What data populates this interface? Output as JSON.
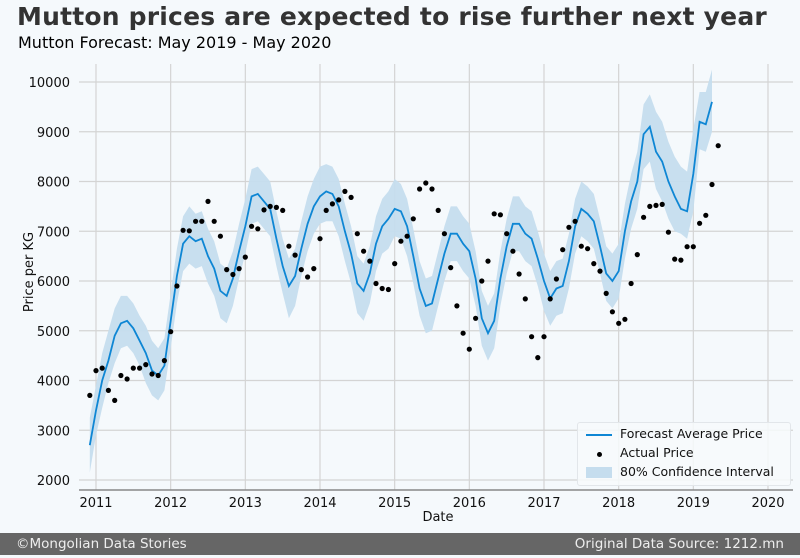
{
  "title": "Mutton prices are expected to rise further next year",
  "subtitle": "Mutton Forecast: May 2019 - May 2020",
  "footer": {
    "left": "©Mongolian Data Stories",
    "right": "Original Data Source: 1212.mn"
  },
  "colors": {
    "forecast_line": "#0e86d4",
    "confidence_fill": "#c5ddee",
    "actual_points": "#000000",
    "footer_bg": "#666666"
  },
  "chart_data": {
    "type": "line",
    "title": "Mutton prices are expected to rise further next year",
    "subtitle": "Mutton Forecast: May 2019 - May 2020",
    "xlabel": "Date",
    "ylabel": "Price per KG",
    "ylim": [
      1800,
      10300
    ],
    "xlim": [
      2010.9,
      2020.35
    ],
    "yticks": [
      2000,
      3000,
      4000,
      5000,
      6000,
      7000,
      8000,
      9000,
      10000
    ],
    "xticks": [
      2011,
      2012,
      2013,
      2014,
      2015,
      2016,
      2017,
      2018,
      2019,
      2020
    ],
    "xtick_labels": [
      "2011",
      "2012",
      "2013",
      "2014",
      "2015",
      "2016",
      "2017",
      "2018",
      "2019",
      "2020"
    ],
    "grid": true,
    "legend_position": "bottom-right",
    "legend": [
      "Forecast Average Price",
      "Actual Price",
      "80% Confidence Interval"
    ],
    "x_start": "2010-12",
    "x_step": "month",
    "series": [
      {
        "name": "Forecast Average Price",
        "values": [
          2700,
          3400,
          4000,
          4400,
          4900,
          5150,
          5200,
          5050,
          4800,
          4550,
          4200,
          4100,
          4300,
          5200,
          6100,
          6750,
          6900,
          6800,
          6850,
          6500,
          6250,
          5800,
          5700,
          6050,
          6600,
          7100,
          7700,
          7750,
          7600,
          7450,
          6850,
          6300,
          5900,
          6100,
          6650,
          7150,
          7500,
          7700,
          7800,
          7750,
          7500,
          7000,
          6550,
          5950,
          5800,
          6150,
          6750,
          7100,
          7250,
          7450,
          7400,
          7100,
          6500,
          5850,
          5500,
          5550,
          6050,
          6550,
          6950,
          6950,
          6750,
          6600,
          6050,
          5250,
          4950,
          5200,
          6050,
          6700,
          7150,
          7150,
          6950,
          6850,
          6450,
          6000,
          5650,
          5850,
          5900,
          6400,
          7100,
          7450,
          7350,
          7200,
          6700,
          6150,
          6000,
          6200,
          7000,
          7600,
          8000,
          8950,
          9100,
          8600,
          8400,
          8000,
          7700,
          7450,
          7400,
          8150,
          9200,
          9150,
          9600
        ]
      },
      {
        "name": "80% Confidence Interval (lower)",
        "values": [
          2150,
          2900,
          3450,
          3950,
          4350,
          4650,
          4700,
          4550,
          4300,
          3950,
          3700,
          3600,
          3800,
          4650,
          5550,
          6200,
          6350,
          6250,
          6300,
          5950,
          5700,
          5250,
          5150,
          5500,
          6050,
          6550,
          7150,
          7200,
          7050,
          6900,
          6300,
          5750,
          5250,
          5500,
          6100,
          6600,
          6950,
          7150,
          7200,
          7200,
          6900,
          6400,
          5950,
          5350,
          5200,
          5550,
          6200,
          6550,
          6650,
          6900,
          6850,
          6500,
          5950,
          5300,
          4950,
          5000,
          5500,
          6000,
          6400,
          6400,
          6200,
          6050,
          5500,
          4700,
          4400,
          4650,
          5500,
          6150,
          6600,
          6600,
          6400,
          6300,
          5900,
          5400,
          5100,
          5300,
          5350,
          5850,
          6550,
          6900,
          6800,
          6650,
          6150,
          5600,
          5450,
          5650,
          6450,
          7050,
          7450,
          8250,
          8400,
          7850,
          7600,
          7250,
          7000,
          6950,
          6850,
          7400,
          8650,
          8600,
          9000
        ]
      },
      {
        "name": "80% Confidence Interval (upper)",
        "values": [
          3250,
          3900,
          4550,
          5000,
          5450,
          5700,
          5700,
          5550,
          5300,
          5100,
          4800,
          4650,
          4850,
          5750,
          6650,
          7300,
          7500,
          7350,
          7400,
          7050,
          6800,
          6350,
          6250,
          6600,
          7150,
          7650,
          8250,
          8300,
          8150,
          8000,
          7400,
          6850,
          6450,
          6650,
          7200,
          7700,
          8050,
          8300,
          8350,
          8300,
          8050,
          7550,
          7100,
          6500,
          6350,
          6700,
          7300,
          7650,
          7800,
          8050,
          7950,
          7650,
          7050,
          6400,
          6050,
          6100,
          6600,
          7100,
          7500,
          7500,
          7300,
          7150,
          6600,
          5800,
          5500,
          5750,
          6600,
          7250,
          7700,
          7700,
          7500,
          7400,
          7000,
          6550,
          6200,
          6400,
          6450,
          6950,
          7650,
          8000,
          7900,
          7750,
          7250,
          6700,
          6550,
          6750,
          7550,
          8150,
          8600,
          9550,
          9750,
          9400,
          9200,
          8800,
          8500,
          8300,
          8200,
          9050,
          9800,
          9800,
          10250
        ]
      },
      {
        "name": "Actual Price",
        "values": [
          3700,
          4200,
          4250,
          3800,
          3600,
          4100,
          4030,
          4250,
          4250,
          4320,
          4130,
          4100,
          4400,
          4980,
          5900,
          7020,
          7010,
          7200,
          7200,
          7600,
          7200,
          6900,
          6230,
          6130,
          6250,
          6480,
          7100,
          7050,
          7430,
          7500,
          7480,
          7420,
          6700,
          6520,
          6230,
          6080,
          6250,
          6850,
          7420,
          7550,
          7630,
          7800,
          7680,
          6950,
          6600,
          6400,
          5950,
          5850,
          5830,
          6350,
          6800,
          6900,
          7250,
          7850,
          7970,
          7850,
          7420,
          6950,
          6270,
          5500,
          4950,
          4630,
          5250,
          6000,
          6400,
          7350,
          7330,
          6950,
          6600,
          6140,
          5640,
          4880,
          4460,
          4880,
          5640,
          6040,
          6630,
          7080,
          7200,
          6700,
          6650,
          6350,
          6200,
          5750,
          5380,
          5150,
          5230,
          5950,
          6530,
          7280,
          7500,
          7520,
          7540,
          6980,
          6440,
          6420,
          6690,
          6690,
          7160,
          7320,
          7940,
          8720
        ]
      }
    ]
  }
}
